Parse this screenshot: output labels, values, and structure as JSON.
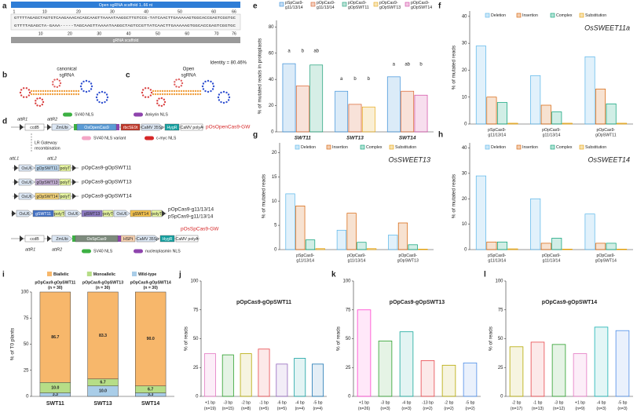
{
  "diagrams": {
    "a": {
      "letter": "a",
      "open_bar": "Open sgRNA scaffold 1..66 nt",
      "top_ruler": [
        1,
        10,
        20,
        30,
        40,
        50,
        60,
        66
      ],
      "query": "GTTTTAGAGCTAGTGTCAAGAAACACAGCAAGTTAAAATAAGGCTTGTCCG-TATCAACTTGAAAAAGTGGCACCGAGTCGGTGC",
      "subject": "GTTTTAGAGCTA-GAAA-----TAGCAAGTTAAAATAAGGCTAGTCCGTTATCAACTTGAAAAAGTGGCACCGAGTCGGTGC",
      "bottom_ruler": [
        10,
        20,
        30,
        40,
        50,
        60,
        70,
        76
      ],
      "scaffold_bar": "gRNA scaffold",
      "identity": "Identity = 80.46%"
    },
    "b": {
      "letter": "b",
      "title_lines": [
        "canonical",
        "sgRNA"
      ]
    },
    "c": {
      "letter": "c",
      "title_lines": [
        "Open",
        "sgRNA"
      ]
    },
    "d": {
      "letter": "d",
      "top_construct": {
        "attR1": "attR1",
        "attR2": "attR2",
        "parts": [
          "ccdB",
          "ZmUbi",
          "OsOpenCas9",
          "rbcSE9t",
          "CaMV 35Sp",
          "HygR",
          "CaMV polyA"
        ],
        "name": "pOsOpenCas9-GW"
      },
      "nls_legend_top": [
        "SV40 NLS",
        "Ankyrin NLS",
        "SV40 NLS variant",
        "c-myc NLS"
      ],
      "gateway": [
        "LR Gateway",
        "recombination"
      ],
      "attL": [
        "attL1",
        "attL2"
      ],
      "single_constructs": [
        {
          "parts": [
            "OsU6",
            "gOpSWT11",
            "polyT"
          ],
          "name": "pOpCas9-gOpSWT11"
        },
        {
          "parts": [
            "OsU6",
            "gOpSWT13",
            "polyT"
          ],
          "name": "pOpCas9-gOpSWT13"
        },
        {
          "parts": [
            "OsU6",
            "gOpSWT14",
            "polyT"
          ],
          "name": "pOpCas9-gOpSWT14"
        }
      ],
      "multi_construct": {
        "parts": [
          "OsU6",
          "gSWT11",
          "polyT",
          "OsU6",
          "gSWT13",
          "polyT",
          "OsU6",
          "gSWT14",
          "polyT"
        ],
        "names": [
          "pOpCas9-g11/13/14",
          "pSpCas9-g11/13/14"
        ]
      },
      "bottom_construct": {
        "attR1": "attR1",
        "attR2": "attR2",
        "parts": [
          "ccdB",
          "ZmUbi",
          "OsSpCas9",
          "HSPt",
          "CaMV 35Sp",
          "HygR",
          "CaMV polyA"
        ],
        "name": "pOsSpCas9-GW"
      },
      "nls_legend_bottom": [
        "SV40 NLS",
        "nucleoplasmin NLS"
      ]
    }
  },
  "chart_data": [
    {
      "letter": "e",
      "type": "grouped_bar",
      "ylabel": "% of mutated reads in protoplasts",
      "categories": [
        "SWT11",
        "SWT13",
        "SWT14"
      ],
      "ylim": [
        0,
        85
      ],
      "yticks": [
        0,
        20,
        40,
        60,
        80
      ],
      "series": [
        {
          "name": "pSpCas9-g11/13/14",
          "color": "#3a8fd9",
          "values": [
            52,
            31,
            42
          ],
          "letters": [
            "a",
            "a",
            "a"
          ]
        },
        {
          "name": "pOpCas9-g11/13/14",
          "color": "#d8602a",
          "values": [
            35,
            21,
            31
          ],
          "letters": [
            "b",
            "b",
            "ab"
          ]
        },
        {
          "name": "pOpCas9-gOpSWT11",
          "color": "#1a9e77",
          "values": [
            51,
            null,
            null
          ],
          "letters": [
            "ab",
            null,
            null
          ]
        },
        {
          "name": "pOpCas9-gOpSWT13",
          "color": "#e6a817",
          "values": [
            null,
            19,
            null
          ],
          "letters": [
            null,
            "b",
            null
          ]
        },
        {
          "name": "pOpCas9-gOpSWT14",
          "color": "#d147a3",
          "values": [
            null,
            null,
            28
          ],
          "letters": [
            null,
            null,
            "b"
          ]
        }
      ]
    },
    {
      "letter": "f",
      "type": "grouped_bar",
      "subtitle": "OsSWEET11a",
      "ylabel": "% of mutated reads",
      "categories": [
        "pSpCas9-g11/13/14",
        "pOpCas9-g11/13/14",
        "pOpCas9-gOpSWT11"
      ],
      "ylim": [
        0,
        42
      ],
      "yticks": [
        0,
        10,
        20,
        30,
        40
      ],
      "series": [
        {
          "name": "Deletion",
          "color": "#56b4e9",
          "values": [
            29,
            18,
            25
          ]
        },
        {
          "name": "Insertion",
          "color": "#d55e00",
          "values": [
            10,
            7,
            13
          ]
        },
        {
          "name": "Complex",
          "color": "#009e73",
          "values": [
            8,
            4.5,
            7.5
          ]
        },
        {
          "name": "Substitution",
          "color": "#e69f00",
          "values": [
            0.3,
            0.3,
            0.3
          ]
        }
      ]
    },
    {
      "letter": "g",
      "type": "grouped_bar",
      "subtitle": "OsSWEET13",
      "ylabel": "% of mutated reads",
      "categories": [
        "pSpCas9-g11/13/14",
        "pOpCas9-g11/13/14",
        "pOpCas9-gOpSWT13"
      ],
      "ylim": [
        0,
        22
      ],
      "yticks": [
        0,
        5,
        10,
        15,
        20
      ],
      "series": [
        {
          "name": "Deletion",
          "color": "#56b4e9",
          "values": [
            11.5,
            4,
            3
          ]
        },
        {
          "name": "Insertion",
          "color": "#d55e00",
          "values": [
            9,
            7.5,
            5.5
          ]
        },
        {
          "name": "Complex",
          "color": "#009e73",
          "values": [
            2,
            1.5,
            1
          ]
        },
        {
          "name": "Substitution",
          "color": "#e69f00",
          "values": [
            0.2,
            0.2,
            0.1
          ]
        }
      ]
    },
    {
      "letter": "h",
      "type": "grouped_bar",
      "subtitle": "OsSWEET14",
      "ylabel": "% of mutated reads",
      "categories": [
        "pSpCas9-g11/13/14",
        "pOpCas9-g11/13/14",
        "pOpCas9-gOpSWT14"
      ],
      "ylim": [
        0,
        42
      ],
      "yticks": [
        0,
        10,
        20,
        30,
        40
      ],
      "series": [
        {
          "name": "Deletion",
          "color": "#56b4e9",
          "values": [
            29,
            20,
            14
          ]
        },
        {
          "name": "Insertion",
          "color": "#d55e00",
          "values": [
            3,
            2.5,
            2.5
          ]
        },
        {
          "name": "Complex",
          "color": "#009e73",
          "values": [
            3,
            4.5,
            2.5
          ]
        },
        {
          "name": "Substitution",
          "color": "#e69f00",
          "values": [
            0.3,
            0.2,
            0.2
          ]
        }
      ]
    },
    {
      "letter": "i",
      "type": "stacked_bar",
      "ylabel": "% of T0 plants",
      "categories": [
        "SWT11",
        "SWT13",
        "SWT14"
      ],
      "group_titles": [
        "pOpCas9-gOpSWT11",
        "pOpCas9-gOpSWT13",
        "pOpCas9-gOpSWT14"
      ],
      "group_n": [
        "(n = 30)",
        "(n = 30)",
        "(n = 30)"
      ],
      "ylim": [
        0,
        100
      ],
      "yticks": [
        0,
        25,
        50,
        75,
        100
      ],
      "series": [
        {
          "name": "Biallelic",
          "color": "#f7b76b",
          "values": [
            86.7,
            83.3,
            90.0
          ],
          "value_labels": [
            "86.7",
            "83.3",
            "90.0"
          ]
        },
        {
          "name": "Monoallelic",
          "color": "#b6dd87",
          "values": [
            10.0,
            6.7,
            6.7
          ],
          "value_labels": [
            "10.0",
            "6.7",
            "6.7"
          ]
        },
        {
          "name": "Wild-type",
          "color": "#a9cde8",
          "values": [
            3.3,
            10.0,
            3.3
          ],
          "value_labels": [
            "3.3",
            "10.0",
            "3.3"
          ]
        }
      ]
    },
    {
      "letter": "j",
      "type": "bar",
      "title": "pOpCas9-gOpSWT11",
      "ylabel": "% of reads",
      "categories": [
        "+1 bp",
        "-3 bp",
        "-2 bp",
        "-1 bp",
        "-6 bp",
        "-4 bp",
        "-5 bp"
      ],
      "counts": [
        "(n=19)",
        "(n=15)",
        "(n=8)",
        "(n=5)",
        "(n=5)",
        "(n=4)",
        "(n=4)"
      ],
      "colors": [
        "#e377c2",
        "#2ca02c",
        "#b5a800",
        "#e8474c",
        "#9467bd",
        "#17a2a2",
        "#1f77b4"
      ],
      "values": [
        37,
        36,
        37,
        41,
        28,
        33,
        28
      ],
      "ylim": [
        0,
        100
      ],
      "yticks": [
        0,
        25,
        50,
        75,
        100
      ]
    },
    {
      "letter": "k",
      "type": "bar",
      "title": "pOpCas9-gOpSWT13",
      "ylabel": "% of reads",
      "categories": [
        "+1 bp",
        "-3 bp",
        "-4 bp",
        "-13 bp",
        "-2 bp",
        "-5 bp"
      ],
      "counts": [
        "(n=26)",
        "(n=3)",
        "(n=3)",
        "(n=2)",
        "(n=2)",
        "(n=2)"
      ],
      "colors": [
        "#ff3fcf",
        "#2ca02c",
        "#17a89c",
        "#e8474c",
        "#b5a800",
        "#4f8fe8"
      ],
      "values": [
        75,
        48,
        56,
        31,
        27,
        29
      ],
      "ylim": [
        0,
        100
      ],
      "yticks": [
        0,
        25,
        50,
        75,
        100
      ]
    },
    {
      "letter": "l",
      "type": "bar",
      "title": "pOpCas9-gOpSWT14",
      "ylabel": "% of reads",
      "categories": [
        "-2 bp",
        "-1 bp",
        "-3 bp",
        "+1 bp",
        "-4 bp",
        "-5 bp"
      ],
      "counts": [
        "(n=17)",
        "(n=13)",
        "(n=12)",
        "(n=9)",
        "(n=3)",
        "(n=3)"
      ],
      "colors": [
        "#b5a800",
        "#e8474c",
        "#2ca02c",
        "#e377c2",
        "#17b2b2",
        "#4f8fe8"
      ],
      "values": [
        43,
        47,
        45,
        37,
        60,
        57
      ],
      "ylim": [
        0,
        100
      ],
      "yticks": [
        0,
        25,
        50,
        75,
        100
      ]
    }
  ]
}
